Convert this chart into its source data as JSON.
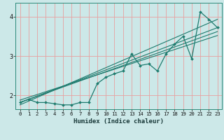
{
  "xlabel": "Humidex (Indice chaleur)",
  "bg_color": "#cce8e8",
  "line_color": "#1e7b6e",
  "grid_color": "#e8a0a0",
  "xlim": [
    -0.5,
    23.5
  ],
  "ylim": [
    1.65,
    4.35
  ],
  "xticks": [
    0,
    1,
    2,
    3,
    4,
    5,
    6,
    7,
    8,
    9,
    10,
    11,
    12,
    13,
    14,
    15,
    16,
    17,
    18,
    19,
    20,
    21,
    22,
    23
  ],
  "yticks": [
    2,
    3,
    4
  ],
  "data_x": [
    0,
    1,
    2,
    3,
    4,
    5,
    6,
    7,
    8,
    9,
    10,
    11,
    12,
    13,
    14,
    15,
    16,
    17,
    18,
    19,
    20,
    21,
    22,
    23
  ],
  "data_y": [
    1.82,
    1.9,
    1.82,
    1.82,
    1.79,
    1.76,
    1.76,
    1.82,
    1.82,
    2.3,
    2.46,
    2.55,
    2.62,
    3.05,
    2.76,
    2.8,
    2.62,
    3.05,
    3.3,
    3.5,
    2.93,
    4.12,
    3.93,
    3.72
  ],
  "reg_lines": [
    [
      1.82,
      3.72
    ],
    [
      1.76,
      3.93
    ],
    [
      1.88,
      3.52
    ],
    [
      1.82,
      3.62
    ]
  ]
}
